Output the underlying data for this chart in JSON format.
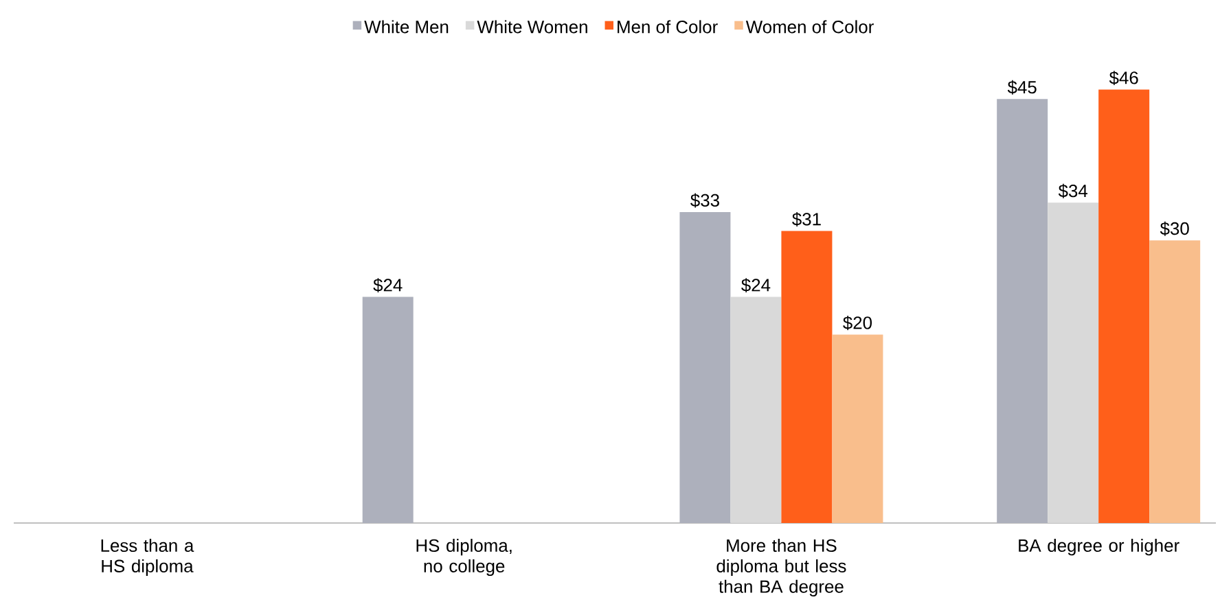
{
  "chart_data": {
    "type": "bar",
    "categories": [
      "Less than a HS diploma",
      "HS diploma, no college",
      "More than HS diploma but less than BA degree",
      "BA degree or higher"
    ],
    "series": [
      {
        "name": "White Men",
        "color": "#adb0bc",
        "values": [
          null,
          24,
          33,
          45
        ],
        "value_labels": [
          null,
          "$24",
          "$33",
          "$45"
        ]
      },
      {
        "name": "White Women",
        "color": "#d9d9d9",
        "values": [
          null,
          null,
          24,
          34
        ],
        "value_labels": [
          null,
          null,
          "$24",
          "$34"
        ]
      },
      {
        "name": "Men of Color",
        "color": "#ff5f1a",
        "values": [
          null,
          null,
          31,
          46
        ],
        "value_labels": [
          null,
          null,
          "$31",
          "$46"
        ]
      },
      {
        "name": "Women of Color",
        "color": "#f9be8c",
        "values": [
          null,
          null,
          20,
          30
        ],
        "value_labels": [
          null,
          null,
          "$20",
          "$30"
        ]
      }
    ],
    "legend": "top"
  }
}
